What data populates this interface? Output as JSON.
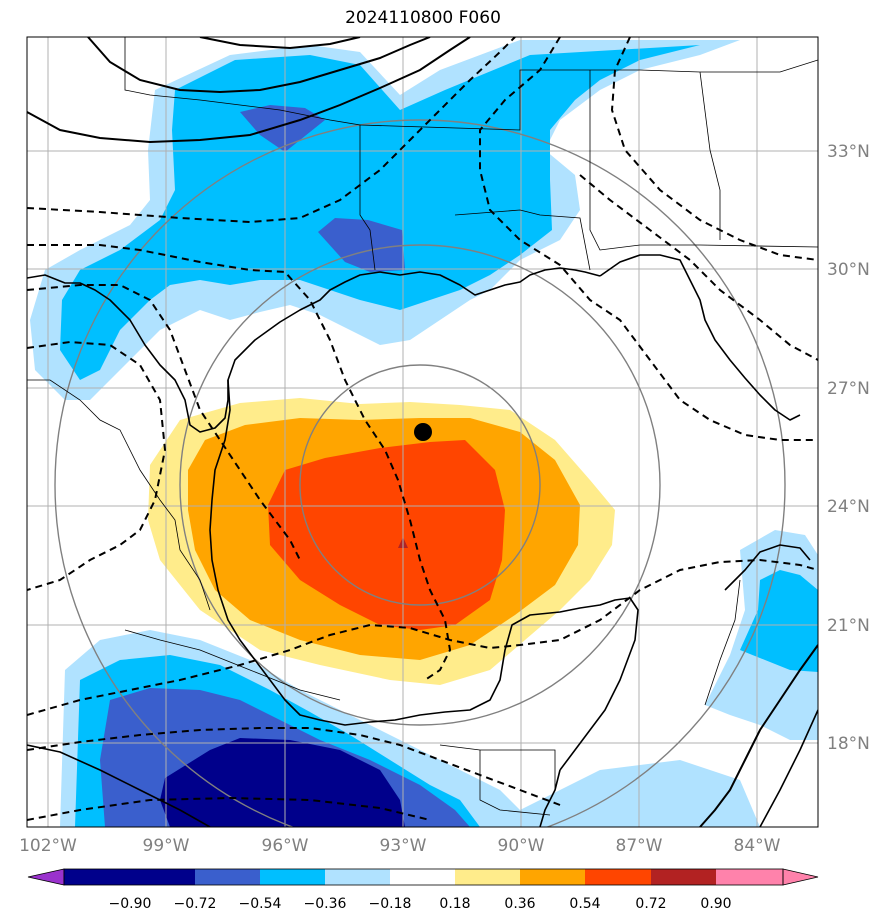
{
  "title": "2024110800 F060",
  "storm_marker": {
    "lon": -92.4,
    "lat": 25.8
  },
  "latitude_ticks": [
    "33°N",
    "30°N",
    "27°N",
    "24°N",
    "21°N",
    "18°N"
  ],
  "longitude_ticks": [
    "102°W",
    "99°W",
    "96°W",
    "93°W",
    "90°W",
    "87°W",
    "84°W"
  ],
  "colorbar": {
    "labels": [
      "−0.90",
      "−0.72",
      "−0.54",
      "−0.36",
      "−0.18",
      "0.18",
      "0.36",
      "0.54",
      "0.72",
      "0.90"
    ],
    "colors": [
      "#9a32cd",
      "#00008b",
      "#3a5fcd",
      "#00bfff",
      "#b0e2ff",
      "#ffffff",
      "#ffec8b",
      "#ffa500",
      "#ff4500",
      "#b22222",
      "#ff82ab"
    ]
  },
  "colors": {
    "coast": "#000000",
    "grid": "#b0b0b0",
    "range_rings": "#808080",
    "dark_blue": "#00008b",
    "royal_blue": "#3a5fcd",
    "deep_sky_blue": "#00bfff",
    "light_sky_blue": "#b0e2ff",
    "light_yellow": "#ffec8b",
    "orange": "#ffa500",
    "orange_red": "#ff4500"
  }
}
